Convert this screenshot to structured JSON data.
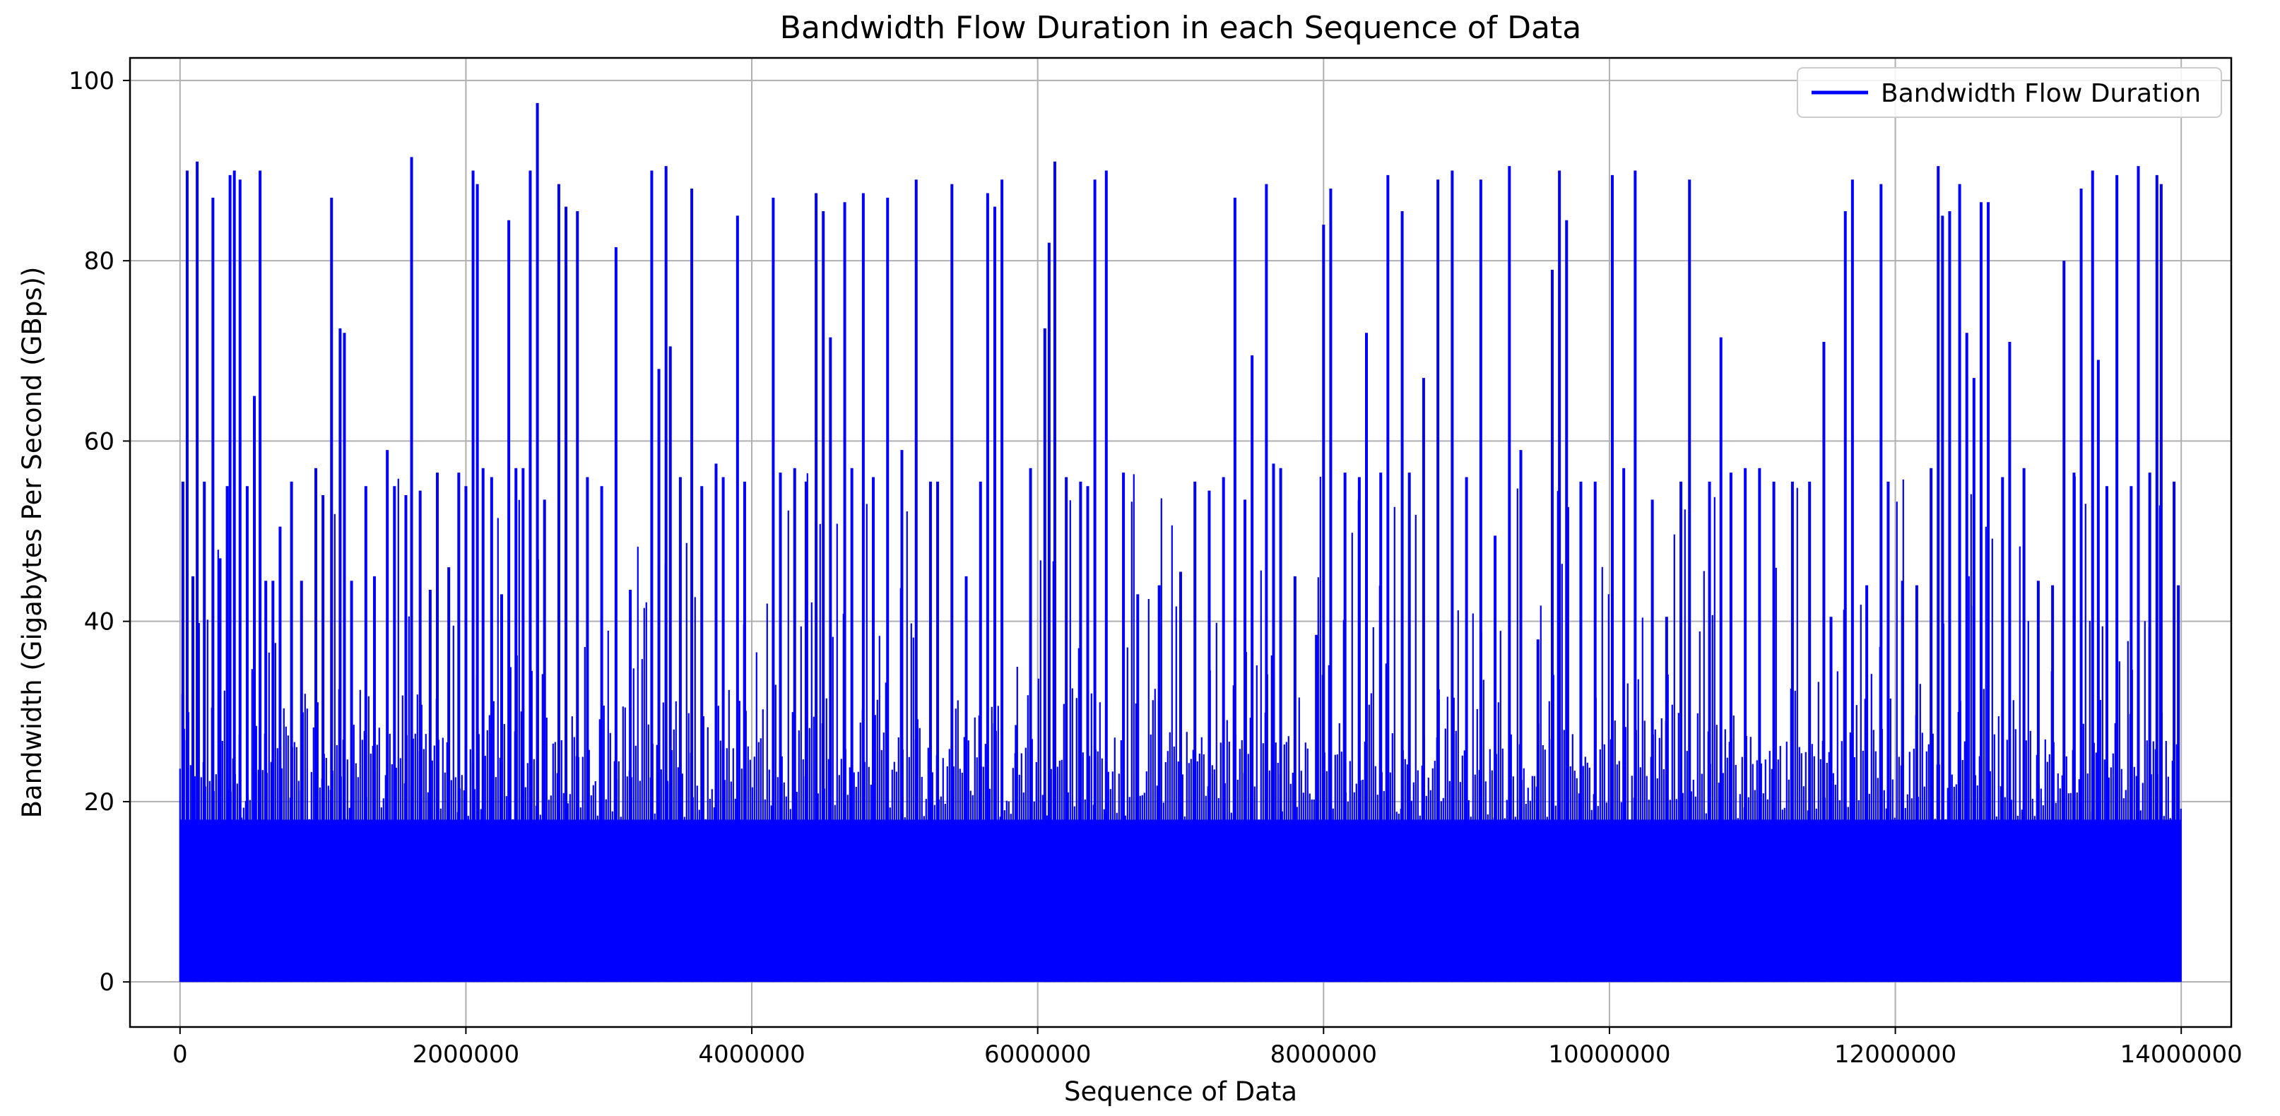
{
  "chart_data": {
    "type": "line",
    "title": "Bandwidth Flow Duration in each Sequence of Data",
    "xlabel": "Sequence of Data",
    "ylabel": "Bandwidth (Gigabytes Per Second (GBps))",
    "xlim": [
      -350000,
      14350000
    ],
    "ylim": [
      -5,
      102.5
    ],
    "xticks": [
      0,
      2000000,
      4000000,
      6000000,
      8000000,
      10000000,
      12000000,
      14000000
    ],
    "xtick_labels": [
      "0",
      "2000000",
      "4000000",
      "6000000",
      "8000000",
      "10000000",
      "12000000",
      "14000000"
    ],
    "yticks": [
      0,
      20,
      40,
      60,
      80,
      100
    ],
    "ytick_labels": [
      "0",
      "20",
      "40",
      "60",
      "80",
      "100"
    ],
    "grid": true,
    "legend_position": "top-right",
    "series": [
      {
        "name": "Bandwidth Flow Duration",
        "color": "#0000ff",
        "x_range": [
          0,
          14000000
        ],
        "baseline_band_max": 18,
        "peaks": [
          [
            20000,
            55.5
          ],
          [
            50000,
            90
          ],
          [
            90000,
            45
          ],
          [
            120000,
            91
          ],
          [
            170000,
            55.5
          ],
          [
            230000,
            87
          ],
          [
            280000,
            47
          ],
          [
            330000,
            55
          ],
          [
            350000,
            89.5
          ],
          [
            380000,
            90
          ],
          [
            420000,
            89
          ],
          [
            470000,
            55
          ],
          [
            520000,
            65
          ],
          [
            560000,
            90
          ],
          [
            600000,
            44.5
          ],
          [
            650000,
            44.5
          ],
          [
            700000,
            50.5
          ],
          [
            780000,
            55.5
          ],
          [
            850000,
            44.5
          ],
          [
            900000,
            13.5
          ],
          [
            950000,
            57
          ],
          [
            1000000,
            54
          ],
          [
            1060000,
            87
          ],
          [
            1120000,
            72.5
          ],
          [
            1150000,
            72
          ],
          [
            1200000,
            44.5
          ],
          [
            1300000,
            55
          ],
          [
            1360000,
            45
          ],
          [
            1450000,
            59
          ],
          [
            1500000,
            55
          ],
          [
            1580000,
            54
          ],
          [
            1620000,
            91.5
          ],
          [
            1680000,
            54.5
          ],
          [
            1750000,
            43.5
          ],
          [
            1800000,
            56.5
          ],
          [
            1880000,
            46
          ],
          [
            1950000,
            56.5
          ],
          [
            2000000,
            55
          ],
          [
            2050000,
            90
          ],
          [
            2080000,
            88.5
          ],
          [
            2120000,
            57
          ],
          [
            2180000,
            56
          ],
          [
            2250000,
            43
          ],
          [
            2300000,
            84.5
          ],
          [
            2350000,
            57
          ],
          [
            2400000,
            57
          ],
          [
            2450000,
            90
          ],
          [
            2500000,
            97.5
          ],
          [
            2550000,
            53.5
          ],
          [
            2650000,
            88.5
          ],
          [
            2700000,
            86
          ],
          [
            2780000,
            85.5
          ],
          [
            2850000,
            56
          ],
          [
            2950000,
            55
          ],
          [
            3050000,
            81.5
          ],
          [
            3150000,
            43.5
          ],
          [
            3300000,
            90
          ],
          [
            3350000,
            68
          ],
          [
            3400000,
            90.5
          ],
          [
            3430000,
            70.5
          ],
          [
            3500000,
            56
          ],
          [
            3580000,
            88
          ],
          [
            3650000,
            55
          ],
          [
            3750000,
            57.5
          ],
          [
            3800000,
            56
          ],
          [
            3900000,
            85
          ],
          [
            3950000,
            55.5
          ],
          [
            4150000,
            87
          ],
          [
            4200000,
            56.5
          ],
          [
            4300000,
            57
          ],
          [
            4380000,
            55.5
          ],
          [
            4450000,
            87.5
          ],
          [
            4500000,
            85.5
          ],
          [
            4550000,
            71.5
          ],
          [
            4650000,
            86.5
          ],
          [
            4700000,
            57
          ],
          [
            4780000,
            87.5
          ],
          [
            4850000,
            56
          ],
          [
            4950000,
            87
          ],
          [
            5050000,
            59
          ],
          [
            5150000,
            89
          ],
          [
            5250000,
            55.5
          ],
          [
            5300000,
            55.5
          ],
          [
            5400000,
            88.5
          ],
          [
            5500000,
            45
          ],
          [
            5600000,
            55.5
          ],
          [
            5650000,
            87.5
          ],
          [
            5700000,
            86
          ],
          [
            5750000,
            89
          ],
          [
            5850000,
            28.5
          ],
          [
            5950000,
            57
          ],
          [
            6050000,
            72.5
          ],
          [
            6080000,
            82
          ],
          [
            6120000,
            91
          ],
          [
            6200000,
            56
          ],
          [
            6300000,
            55.5
          ],
          [
            6350000,
            55
          ],
          [
            6400000,
            89
          ],
          [
            6480000,
            90
          ],
          [
            6600000,
            56.5
          ],
          [
            6700000,
            43
          ],
          [
            6850000,
            44
          ],
          [
            7000000,
            45.5
          ],
          [
            7100000,
            55.5
          ],
          [
            7200000,
            54.5
          ],
          [
            7300000,
            56
          ],
          [
            7380000,
            87
          ],
          [
            7450000,
            53.5
          ],
          [
            7500000,
            69.5
          ],
          [
            7600000,
            88.5
          ],
          [
            7650000,
            57.5
          ],
          [
            7700000,
            57
          ],
          [
            7800000,
            45
          ],
          [
            7950000,
            38.5
          ],
          [
            8000000,
            84
          ],
          [
            8050000,
            88
          ],
          [
            8150000,
            56.5
          ],
          [
            8250000,
            56
          ],
          [
            8300000,
            72
          ],
          [
            8400000,
            56.5
          ],
          [
            8450000,
            89.5
          ],
          [
            8550000,
            85.5
          ],
          [
            8600000,
            56.5
          ],
          [
            8700000,
            67
          ],
          [
            8800000,
            89
          ],
          [
            8900000,
            90
          ],
          [
            9000000,
            56
          ],
          [
            9100000,
            89
          ],
          [
            9200000,
            49.5
          ],
          [
            9300000,
            90.5
          ],
          [
            9380000,
            59
          ],
          [
            9500000,
            38
          ],
          [
            9600000,
            79
          ],
          [
            9650000,
            90
          ],
          [
            9700000,
            84.5
          ],
          [
            9800000,
            55.5
          ],
          [
            9900000,
            55.5
          ],
          [
            10020000,
            89.5
          ],
          [
            10100000,
            57
          ],
          [
            10180000,
            90
          ],
          [
            10300000,
            53.5
          ],
          [
            10400000,
            40.5
          ],
          [
            10500000,
            55.5
          ],
          [
            10560000,
            89
          ],
          [
            10700000,
            55.5
          ],
          [
            10780000,
            71.5
          ],
          [
            10850000,
            56.5
          ],
          [
            10950000,
            57
          ],
          [
            11050000,
            57
          ],
          [
            11150000,
            55.5
          ],
          [
            11280000,
            55.5
          ],
          [
            11400000,
            55.5
          ],
          [
            11500000,
            71
          ],
          [
            11550000,
            40.5
          ],
          [
            11650000,
            85.5
          ],
          [
            11700000,
            89
          ],
          [
            11800000,
            44
          ],
          [
            11900000,
            88.5
          ],
          [
            11950000,
            55.5
          ],
          [
            12050000,
            44.5
          ],
          [
            12150000,
            44
          ],
          [
            12250000,
            57
          ],
          [
            12300000,
            90.5
          ],
          [
            12330000,
            85
          ],
          [
            12380000,
            85.5
          ],
          [
            12450000,
            88.5
          ],
          [
            12500000,
            72
          ],
          [
            12550000,
            67
          ],
          [
            12600000,
            86.5
          ],
          [
            12650000,
            86.5
          ],
          [
            12750000,
            56
          ],
          [
            12800000,
            71
          ],
          [
            12900000,
            57
          ],
          [
            13000000,
            44.5
          ],
          [
            13100000,
            44
          ],
          [
            13180000,
            80
          ],
          [
            13250000,
            56.5
          ],
          [
            13300000,
            88
          ],
          [
            13380000,
            90
          ],
          [
            13420000,
            69
          ],
          [
            13480000,
            55
          ],
          [
            13550000,
            89.5
          ],
          [
            13650000,
            55
          ],
          [
            13700000,
            90.5
          ],
          [
            13780000,
            56.5
          ],
          [
            13830000,
            89.5
          ],
          [
            13860000,
            88.5
          ],
          [
            13950000,
            55.5
          ],
          [
            13980000,
            44
          ]
        ]
      }
    ]
  }
}
